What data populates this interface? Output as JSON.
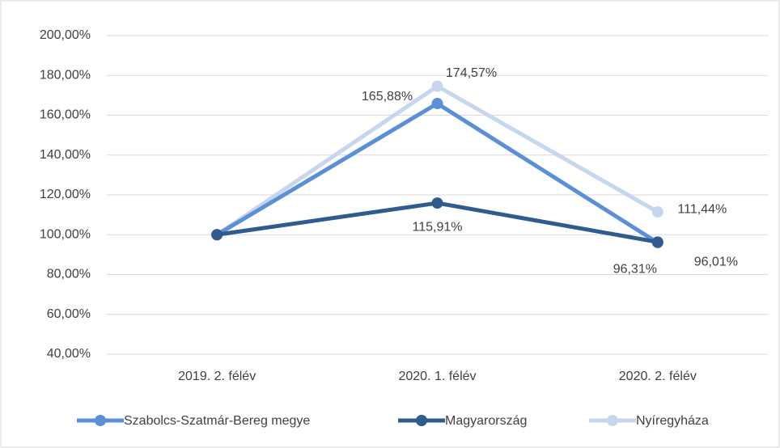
{
  "chart_data": {
    "type": "line",
    "categories": [
      "2019. 2. félév",
      "2020. 1. félév",
      "2020. 2. félév"
    ],
    "series": [
      {
        "name": "Szabolcs-Szatmár-Bereg megye",
        "color": "#5b8fd6",
        "values": [
          100,
          165.88,
          96.01
        ],
        "value_labels": [
          null,
          "165,88%",
          "96,01%"
        ]
      },
      {
        "name": "Magyarország",
        "color": "#2f5b8f",
        "values": [
          100,
          115.91,
          96.31
        ],
        "value_labels": [
          null,
          "115,91%",
          "96,31%"
        ]
      },
      {
        "name": "Nyíregyháza",
        "color": "#c6d6ef",
        "values": [
          100,
          174.57,
          111.44
        ],
        "value_labels": [
          null,
          "174,57%",
          "111,44%"
        ]
      }
    ],
    "ylim": [
      40,
      200
    ],
    "yticks": [
      {
        "value": 40,
        "label": "40,00%"
      },
      {
        "value": 60,
        "label": "60,00%"
      },
      {
        "value": 80,
        "label": "80,00%"
      },
      {
        "value": 100,
        "label": "100,00%"
      },
      {
        "value": 120,
        "label": "120,00%"
      },
      {
        "value": 140,
        "label": "140,00%"
      },
      {
        "value": 160,
        "label": "160,00%"
      },
      {
        "value": 180,
        "label": "180,00%"
      },
      {
        "value": 200,
        "label": "200,00%"
      }
    ],
    "grid": true,
    "legend": "bottom"
  }
}
